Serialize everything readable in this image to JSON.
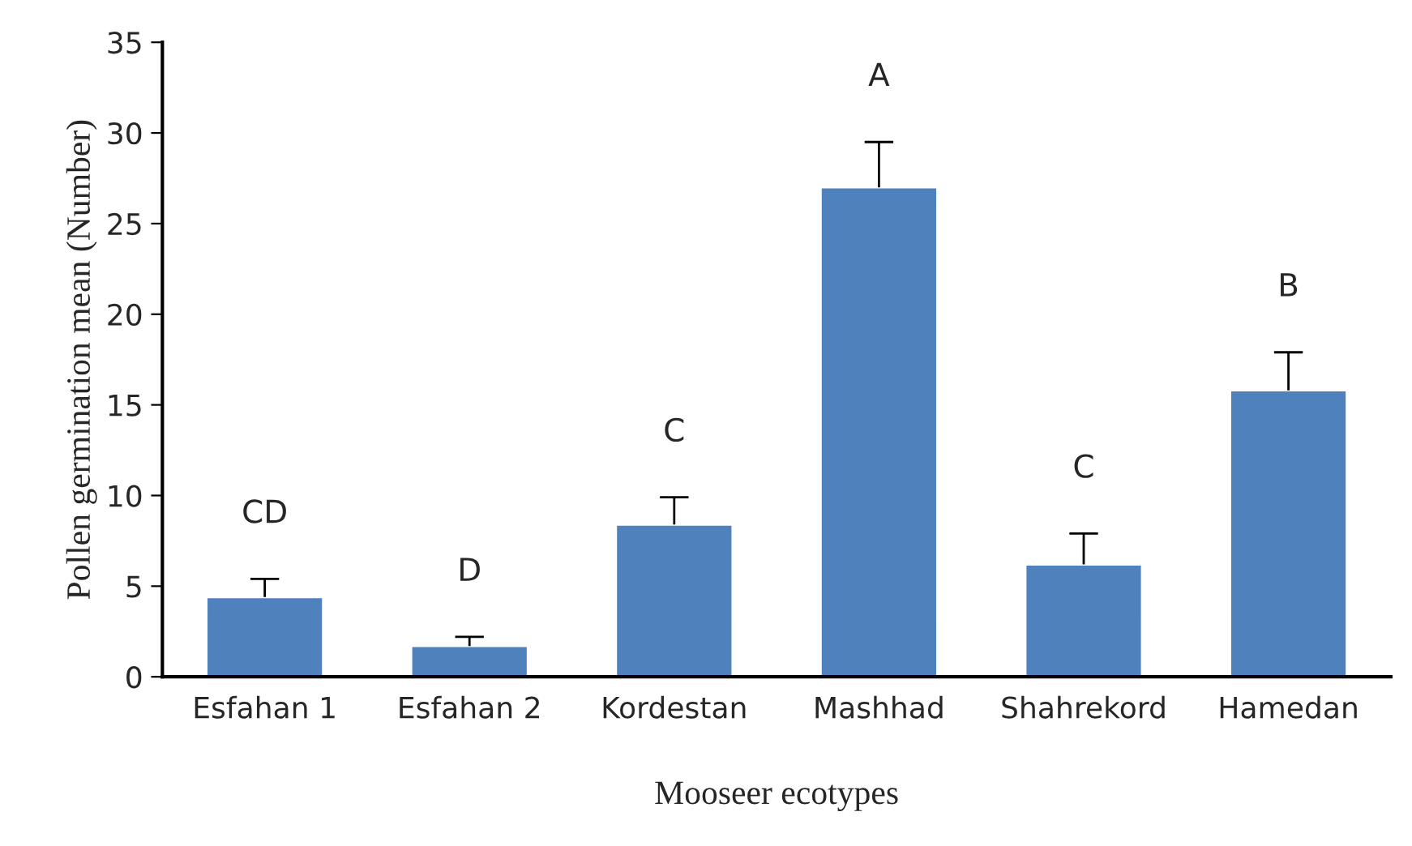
{
  "chart_data": {
    "type": "bar",
    "xlabel": "Mooseer ecotypes",
    "ylabel": "Pollen germination mean (Number)",
    "categories": [
      "Esfahan 1",
      "Esfahan 2",
      "Kordestan",
      "Mashhad",
      "Shahrekord",
      "Hamedan"
    ],
    "values": [
      4.4,
      1.7,
      8.4,
      27.0,
      6.2,
      15.8
    ],
    "errors": [
      [
        4.4,
        5.4
      ],
      [
        1.7,
        2.2
      ],
      [
        8.4,
        9.9
      ],
      [
        27.0,
        29.5
      ],
      [
        6.2,
        7.9
      ],
      [
        15.8,
        17.9
      ]
    ],
    "color": "#4f81bd",
    "ylim": [
      0,
      35
    ],
    "yticks": [
      0,
      5,
      10,
      15,
      20,
      25,
      30,
      35
    ],
    "grid": false,
    "annotations": [
      "CD",
      "D",
      "C",
      "A",
      "C",
      "B"
    ]
  }
}
